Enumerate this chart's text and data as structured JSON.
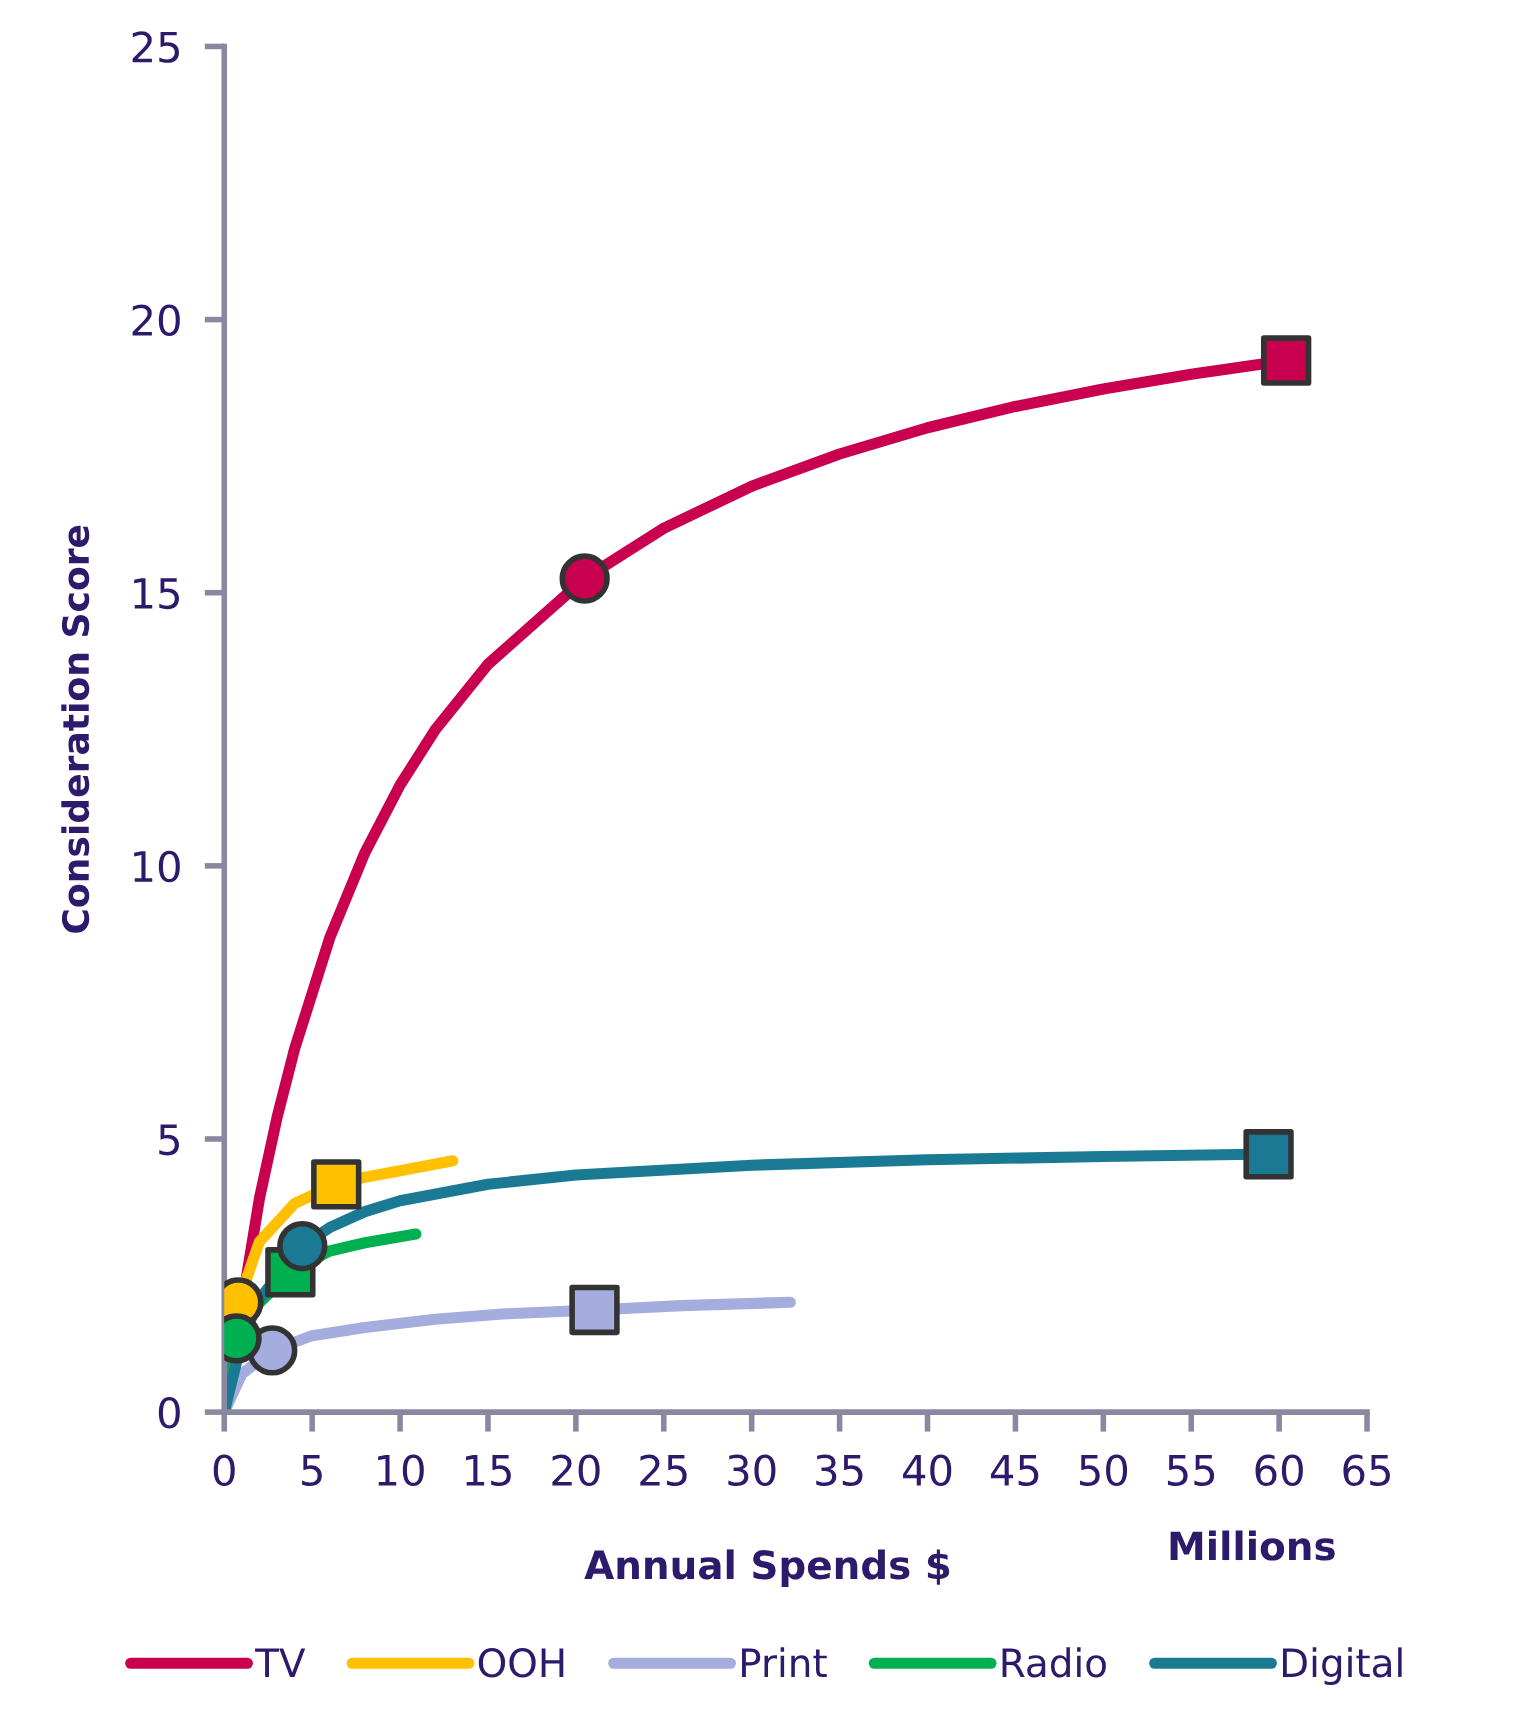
{
  "chart_data": {
    "type": "line",
    "xlabel": "Annual Spends $",
    "ylabel": "Consideration Score",
    "xlim": [
      0,
      65
    ],
    "xticks": [
      0,
      5,
      10,
      15,
      20,
      25,
      30,
      35,
      40,
      45,
      50,
      55,
      60,
      65
    ],
    "ylim": [
      0,
      25
    ],
    "yticks": [
      0,
      5,
      10,
      15,
      20,
      25
    ],
    "grid": false,
    "legend": "bottom",
    "annotations": [
      "Millions"
    ],
    "series": [
      {
        "name": "TV",
        "color": "#c8004f",
        "x": [
          0,
          2,
          3,
          4,
          6,
          8,
          10,
          12,
          15,
          20.5,
          25,
          30,
          35,
          40,
          45,
          50,
          55,
          60.4
        ],
        "values": [
          0,
          3.91,
          5.39,
          6.65,
          8.68,
          10.24,
          11.48,
          12.49,
          13.69,
          15.26,
          16.18,
          16.95,
          17.54,
          18.02,
          18.41,
          18.73,
          19.0,
          19.25
        ]
      },
      {
        "name": "OOH",
        "color": "#ffc000",
        "x": [
          0,
          0.8,
          2,
          4,
          6.37,
          8,
          10,
          13
        ],
        "values": [
          0,
          2.01,
          3.12,
          3.82,
          4.17,
          4.3,
          4.42,
          4.6
        ]
      },
      {
        "name": "Print",
        "color": "#a5acde",
        "x": [
          0,
          1,
          2.73,
          5,
          8,
          12,
          16,
          21.06,
          26,
          32.2
        ],
        "values": [
          0,
          0.7,
          1.13,
          1.4,
          1.55,
          1.7,
          1.8,
          1.87,
          1.95,
          2.01
        ]
      },
      {
        "name": "Radio",
        "color": "#00b050",
        "x": [
          0,
          0.7,
          2,
          3.76,
          6,
          8,
          10.9
        ],
        "values": [
          0,
          1.35,
          2.0,
          2.56,
          2.95,
          3.1,
          3.26
        ]
      },
      {
        "name": "Digital",
        "color": "#1a7a94",
        "x": [
          0,
          1,
          2,
          4.44,
          6,
          8,
          10,
          15,
          20,
          30,
          40,
          50,
          60.4
        ],
        "values": [
          0,
          1.31,
          2.07,
          3.04,
          3.38,
          3.67,
          3.87,
          4.17,
          4.34,
          4.52,
          4.62,
          4.68,
          4.73
        ]
      },
      {
        "type": "scatter",
        "marker": "circle",
        "color": "#c8004f",
        "x": [
          20.5
        ],
        "values": [
          15.26
        ]
      },
      {
        "type": "scatter",
        "marker": "square",
        "color": "#c8004f",
        "x": [
          60.4
        ],
        "values": [
          19.25
        ]
      },
      {
        "type": "scatter",
        "marker": "square",
        "color": "#ffc000",
        "x": [
          6.37
        ],
        "values": [
          4.17
        ]
      },
      {
        "type": "scatter",
        "marker": "square",
        "color": "#1a7a94",
        "x": [
          59.4
        ],
        "values": [
          4.72
        ]
      },
      {
        "type": "scatter",
        "marker": "square",
        "color": "#a5acde",
        "x": [
          21.06
        ],
        "values": [
          1.87
        ]
      },
      {
        "type": "scatter",
        "marker": "square",
        "color": "#00b050",
        "x": [
          3.76
        ],
        "values": [
          2.56
        ]
      },
      {
        "type": "scatter",
        "marker": "circle",
        "color": "#1a7a94",
        "x": [
          4.44
        ],
        "values": [
          3.04
        ]
      },
      {
        "type": "scatter",
        "marker": "circle",
        "color": "#ffc000",
        "x": [
          0.8
        ],
        "values": [
          2.01
        ]
      },
      {
        "type": "scatter",
        "marker": "circle",
        "color": "#a5acde",
        "x": [
          2.73
        ],
        "values": [
          1.13
        ]
      },
      {
        "type": "scatter",
        "marker": "circle",
        "color": "#00b050",
        "x": [
          0.7
        ],
        "values": [
          1.35
        ]
      }
    ]
  }
}
